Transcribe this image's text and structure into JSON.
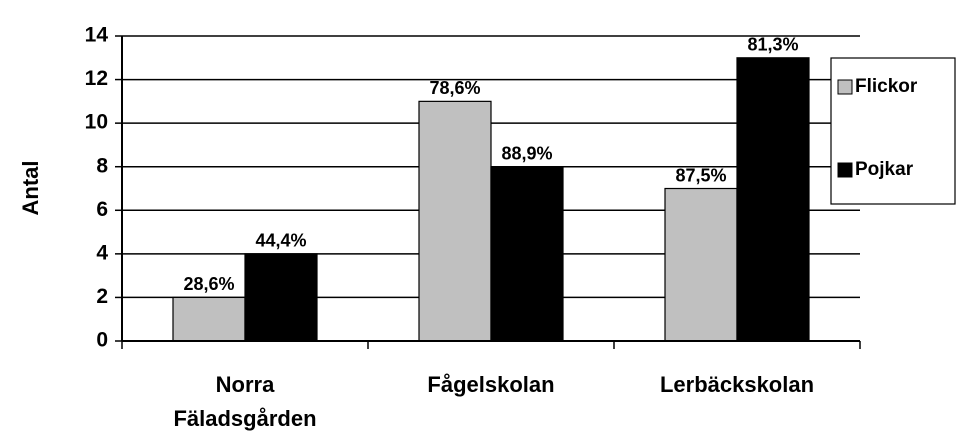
{
  "chart_data": {
    "type": "bar",
    "y_label": "Antal",
    "categories": [
      "Norra Fäladsgården",
      "Fågelskolan",
      "Lerbäckskolan"
    ],
    "series": [
      {
        "name": "Flickor",
        "color": "#c0c0c0",
        "values": [
          2,
          11,
          7
        ],
        "annotations": [
          "28,6%",
          "78,6%",
          "87,5%"
        ]
      },
      {
        "name": "Pojkar",
        "color": "#000000",
        "values": [
          4,
          8,
          13
        ],
        "annotations": [
          "44,4%",
          "88,9%",
          "81,3%"
        ]
      }
    ],
    "ylim": [
      0,
      14
    ],
    "yticks": [
      0,
      2,
      4,
      6,
      8,
      10,
      12,
      14
    ],
    "grid": true,
    "legend": "right"
  }
}
